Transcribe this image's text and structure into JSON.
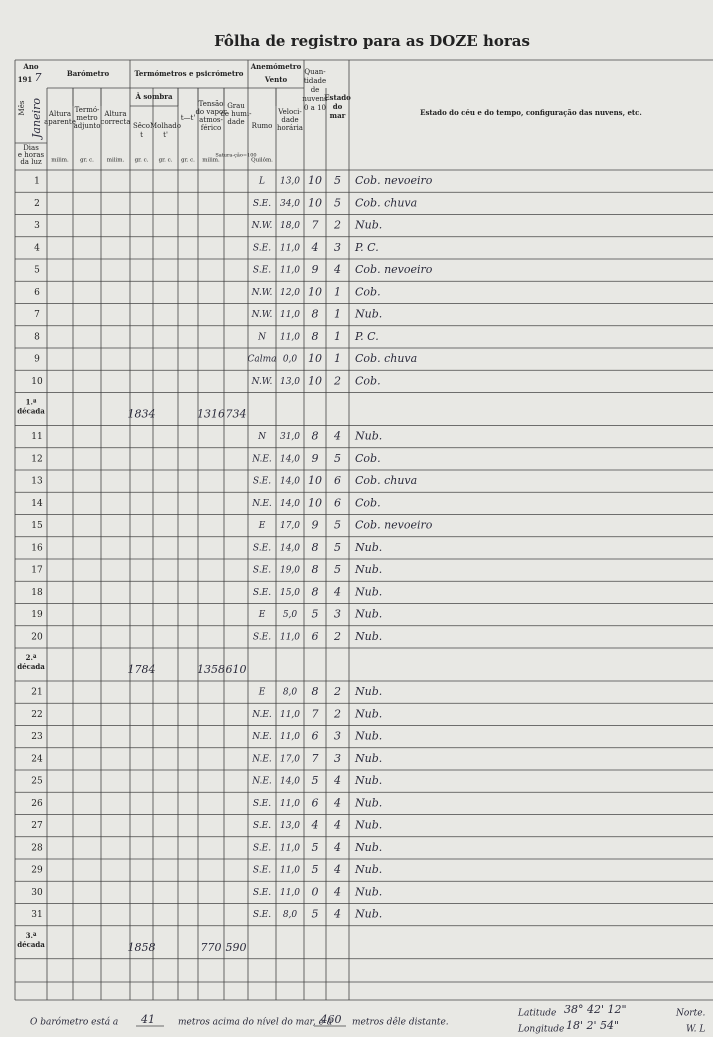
{
  "header": {
    "title": "Fôlha de registro para as DOZE horas"
  },
  "form": {
    "year_label": "Ano",
    "year_print": "191",
    "year_hand": "7",
    "month_label": "Mês",
    "month_hand": "Janeiro",
    "days_label": [
      "Dias",
      "e horas",
      "da luz"
    ],
    "barometer": "Barómetro",
    "alt_aparente": [
      "Altura",
      "aparente"
    ],
    "term_adjunto": [
      "Termó-",
      "metro",
      "adjunto"
    ],
    "alt_correcta": [
      "Altura",
      "correcta"
    ],
    "thermometers": "Termómetros e psicrómetro",
    "shade": "À sombra",
    "dry": [
      "Sêco",
      "t"
    ],
    "wet": [
      "Molhado",
      "t'"
    ],
    "diff": "t—t'",
    "tension": [
      "Tensão",
      "do vapor",
      "atmos-",
      "férico"
    ],
    "humidity": [
      "Grau",
      "de humi-",
      "dade"
    ],
    "anemometer": "Anemómetro",
    "wind": "Vento",
    "direction": "Rumo",
    "speed": [
      "Veloci-",
      "dade",
      "horária"
    ],
    "clouds": [
      "Quan-",
      "tidade",
      "de",
      "nuvens",
      "0 a 10"
    ],
    "sea": [
      "Estado",
      "do",
      "mar"
    ],
    "remarks": "Estado do céu e do tempo, configuração das nuvens, etc.",
    "units": [
      "milim.",
      "gr. c.",
      "milim.",
      "gr. c.",
      "gr. c.",
      "gr. c.",
      "milim.",
      "Satura-ção=100",
      "Quilóm."
    ]
  },
  "rows": [
    {
      "day": "1",
      "direction": "L",
      "speed": "13,0",
      "clouds": "10",
      "sea": "5",
      "remarks": "Cob. nevoeiro"
    },
    {
      "day": "2",
      "direction": "S.E.",
      "speed": "34,0",
      "clouds": "10",
      "sea": "5",
      "remarks": "Cob. chuva"
    },
    {
      "day": "3",
      "direction": "N.W.",
      "speed": "18,0",
      "clouds": "7",
      "sea": "2",
      "remarks": "Nub."
    },
    {
      "day": "4",
      "direction": "S.E.",
      "speed": "11,0",
      "clouds": "4",
      "sea": "3",
      "remarks": "P. C."
    },
    {
      "day": "5",
      "direction": "S.E.",
      "speed": "11,0",
      "clouds": "9",
      "sea": "4",
      "remarks": "Cob. nevoeiro"
    },
    {
      "day": "6",
      "direction": "N.W.",
      "speed": "12,0",
      "clouds": "10",
      "sea": "1",
      "remarks": "Cob."
    },
    {
      "day": "7",
      "direction": "N.W.",
      "speed": "11,0",
      "clouds": "8",
      "sea": "1",
      "remarks": "Nub."
    },
    {
      "day": "8",
      "direction": "N",
      "speed": "11,0",
      "clouds": "8",
      "sea": "1",
      "remarks": "P. C."
    },
    {
      "day": "9",
      "direction": "Calma",
      "speed": "0,0",
      "clouds": "10",
      "sea": "1",
      "remarks": "Cob. chuva"
    },
    {
      "day": "10",
      "direction": "N.W.",
      "speed": "13,0",
      "clouds": "10",
      "sea": "2",
      "remarks": "Cob."
    },
    {
      "day": "11",
      "direction": "N",
      "speed": "31,0",
      "clouds": "8",
      "sea": "4",
      "remarks": "Nub."
    },
    {
      "day": "12",
      "direction": "N.E.",
      "speed": "14,0",
      "clouds": "9",
      "sea": "5",
      "remarks": "Cob."
    },
    {
      "day": "13",
      "direction": "S.E.",
      "speed": "14,0",
      "clouds": "10",
      "sea": "6",
      "remarks": "Cob. chuva"
    },
    {
      "day": "14",
      "direction": "N.E.",
      "speed": "14,0",
      "clouds": "10",
      "sea": "6",
      "remarks": "Cob."
    },
    {
      "day": "15",
      "direction": "E",
      "speed": "17,0",
      "clouds": "9",
      "sea": "5",
      "remarks": "Cob. nevoeiro"
    },
    {
      "day": "16",
      "direction": "S.E.",
      "speed": "14,0",
      "clouds": "8",
      "sea": "5",
      "remarks": "Nub."
    },
    {
      "day": "17",
      "direction": "S.E.",
      "speed": "19,0",
      "clouds": "8",
      "sea": "5",
      "remarks": "Nub."
    },
    {
      "day": "18",
      "direction": "S.E.",
      "speed": "15,0",
      "clouds": "8",
      "sea": "4",
      "remarks": "Nub."
    },
    {
      "day": "19",
      "direction": "E",
      "speed": "5,0",
      "clouds": "5",
      "sea": "3",
      "remarks": "Nub."
    },
    {
      "day": "20",
      "direction": "S.E.",
      "speed": "11,0",
      "clouds": "6",
      "sea": "2",
      "remarks": "Nub."
    },
    {
      "day": "21",
      "direction": "E",
      "speed": "8,0",
      "clouds": "8",
      "sea": "2",
      "remarks": "Nub."
    },
    {
      "day": "22",
      "direction": "N.E.",
      "speed": "11,0",
      "clouds": "7",
      "sea": "2",
      "remarks": "Nub."
    },
    {
      "day": "23",
      "direction": "N.E.",
      "speed": "11,0",
      "clouds": "6",
      "sea": "3",
      "remarks": "Nub."
    },
    {
      "day": "24",
      "direction": "N.E.",
      "speed": "17,0",
      "clouds": "7",
      "sea": "3",
      "remarks": "Nub."
    },
    {
      "day": "25",
      "direction": "N.E.",
      "speed": "14,0",
      "clouds": "5",
      "sea": "4",
      "remarks": "Nub."
    },
    {
      "day": "26",
      "direction": "S.E.",
      "speed": "11,0",
      "clouds": "6",
      "sea": "4",
      "remarks": "Nub."
    },
    {
      "day": "27",
      "direction": "S.E.",
      "speed": "13,0",
      "clouds": "4",
      "sea": "4",
      "remarks": "Nub."
    },
    {
      "day": "28",
      "direction": "S.E.",
      "speed": "11,0",
      "clouds": "5",
      "sea": "4",
      "remarks": "Nub."
    },
    {
      "day": "29",
      "direction": "S.E.",
      "speed": "11,0",
      "clouds": "5",
      "sea": "4",
      "remarks": "Nub."
    },
    {
      "day": "30",
      "direction": "S.E.",
      "speed": "11,0",
      "clouds": "0",
      "sea": "4",
      "remarks": "Nub."
    },
    {
      "day": "31",
      "direction": "S.E.",
      "speed": "8,0",
      "clouds": "5",
      "sea": "4",
      "remarks": "Nub."
    }
  ],
  "decades": [
    {
      "label": [
        "1.ª",
        "década"
      ],
      "dry": "1834",
      "tension": "1316",
      "humidity": "734"
    },
    {
      "label": [
        "2.ª",
        "década"
      ],
      "dry": "1784",
      "tension": "1358",
      "humidity": "610"
    },
    {
      "label": [
        "3.ª",
        "década"
      ],
      "dry": "1858",
      "tension": "770",
      "humidity": "590"
    }
  ],
  "footer": {
    "baro_1": "O barómetro está a",
    "height": "41",
    "baro_2": "metros acima do nível do mar, e a",
    "distance": "460",
    "baro_3": "metros dêle distante.",
    "lat_label": "Latitude",
    "lat": "38° 42' 12\"",
    "lat_dir": "Norte.",
    "lon_label": "Longitude",
    "lon": "18' 2' 54\"",
    "lon_dir": "W. L"
  }
}
